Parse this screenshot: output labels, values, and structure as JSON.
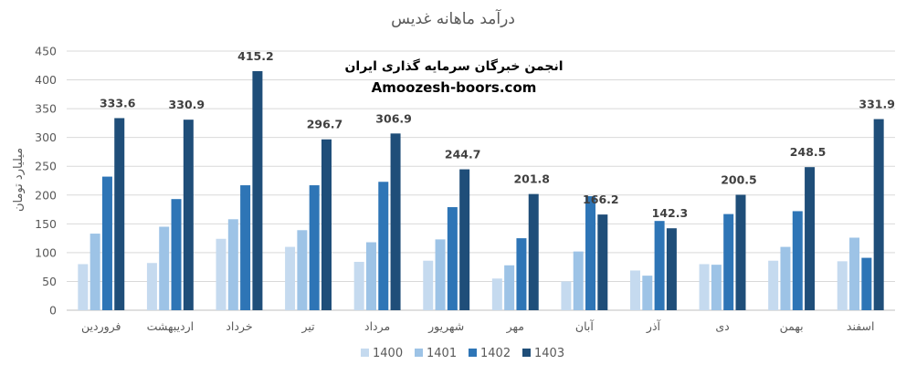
{
  "chart_data": {
    "type": "bar",
    "title": "درآمد ماهانه غدیس",
    "ylabel": "میلیارد تومان",
    "xlabel": "",
    "ylim": [
      0,
      450
    ],
    "yticks": [
      0,
      50,
      100,
      150,
      200,
      250,
      300,
      350,
      400,
      450
    ],
    "grid": true,
    "legend_position": "bottom",
    "categories": [
      "فروردین",
      "اردیبهشت",
      "خرداد",
      "تیر",
      "مرداد",
      "شهریور",
      "مهر",
      "آبان",
      "آذر",
      "دی",
      "بهمن",
      "اسفند"
    ],
    "series": [
      {
        "name": "1400",
        "color": "#c5daef",
        "values": [
          80,
          82,
          124,
          110,
          84,
          86,
          55,
          50,
          69,
          80,
          86,
          85
        ]
      },
      {
        "name": "1401",
        "color": "#9dc3e6",
        "values": [
          133,
          145,
          158,
          139,
          118,
          123,
          78,
          102,
          60,
          79,
          110,
          126
        ]
      },
      {
        "name": "1402",
        "color": "#2e75b6",
        "values": [
          232,
          193,
          217,
          217,
          223,
          179,
          125,
          198,
          155,
          167,
          172,
          91
        ]
      },
      {
        "name": "1403",
        "color": "#1f4e79",
        "values": [
          333.6,
          330.9,
          415.2,
          296.7,
          306.9,
          244.7,
          201.8,
          166.2,
          142.3,
          200.5,
          248.5,
          331.9
        ],
        "labels": [
          "333.6",
          "330.9",
          "415.2",
          "296.7",
          "306.9",
          "244.7",
          "201.8",
          "166.2",
          "142.3",
          "200.5",
          "248.5",
          "331.9"
        ]
      }
    ]
  },
  "watermark": {
    "line1": "انجمن خبرگان سرمایه گذاری ایران",
    "line2": "Amoozesh-boors.com"
  }
}
